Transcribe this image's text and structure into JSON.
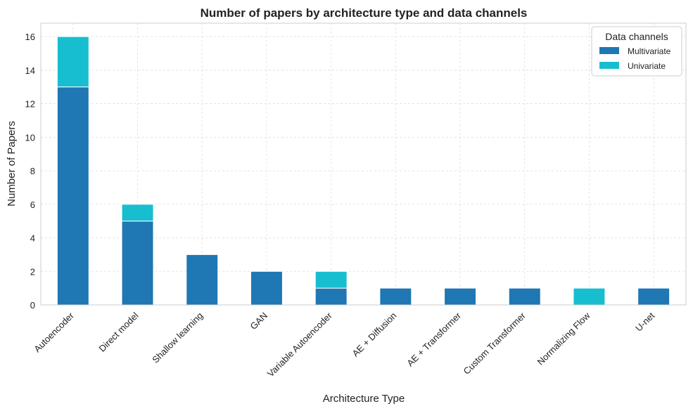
{
  "chart_data": {
    "type": "bar",
    "stacked": true,
    "title": "Number of papers by architecture type and data channels",
    "xlabel": "Architecture Type",
    "ylabel": "Number of Papers",
    "ylim": [
      0,
      16.8
    ],
    "yticks": [
      0,
      2,
      4,
      6,
      8,
      10,
      12,
      14,
      16
    ],
    "grid": true,
    "legend": {
      "title": "Data channels",
      "placement": "top-right"
    },
    "categories": [
      "Autoencoder",
      "Direct model",
      "Shallow learning",
      "GAN",
      "Variable Autoencoder",
      "AE + Diffusion",
      "AE + Transformer",
      "Custom Transformer",
      "Normalizing Flow",
      "U-net"
    ],
    "series": [
      {
        "name": "Multivariate",
        "color": "#1f77b4",
        "values": [
          13,
          5,
          3,
          2,
          1,
          1,
          1,
          1,
          0,
          1
        ]
      },
      {
        "name": "Univariate",
        "color": "#17becf",
        "values": [
          3,
          1,
          0,
          0,
          1,
          0,
          0,
          0,
          1,
          0
        ]
      }
    ]
  }
}
